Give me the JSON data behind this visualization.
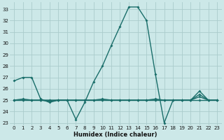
{
  "xlabel": "Humidex (Indice chaleur)",
  "bg_color": "#cce8e8",
  "grid_color": "#aacccc",
  "line_color": "#1a6e6a",
  "xlim": [
    -0.5,
    23.5
  ],
  "ylim": [
    22.8,
    33.6
  ],
  "yticks": [
    23,
    24,
    25,
    26,
    27,
    28,
    29,
    30,
    31,
    32,
    33
  ],
  "xticks": [
    0,
    1,
    2,
    3,
    4,
    5,
    6,
    7,
    8,
    9,
    10,
    11,
    12,
    13,
    14,
    15,
    16,
    17,
    18,
    19,
    20,
    21,
    22,
    23
  ],
  "series": [
    {
      "x": [
        0,
        1,
        2,
        3,
        4,
        5,
        6,
        7,
        8,
        9,
        10,
        11,
        12,
        13,
        14,
        15,
        16,
        17,
        18,
        19,
        20,
        21,
        22,
        23
      ],
      "y": [
        26.7,
        27.0,
        27.0,
        25.1,
        24.8,
        25.0,
        25.0,
        23.3,
        24.8,
        26.6,
        28.0,
        29.8,
        31.5,
        33.2,
        33.2,
        32.0,
        27.3,
        23.0,
        25.0,
        25.0,
        25.0,
        25.8,
        25.0,
        25.0
      ]
    },
    {
      "x": [
        0,
        1,
        2,
        3,
        4,
        5,
        6,
        7,
        8,
        9,
        10,
        11,
        12,
        13,
        14,
        15,
        16,
        17,
        18,
        19,
        20,
        21,
        22,
        23
      ],
      "y": [
        25.0,
        25.1,
        25.0,
        25.0,
        24.9,
        25.0,
        25.0,
        25.0,
        25.0,
        25.0,
        25.1,
        25.0,
        25.0,
        25.0,
        25.0,
        25.0,
        25.0,
        25.0,
        25.0,
        25.0,
        25.0,
        25.5,
        25.0,
        25.0
      ]
    },
    {
      "x": [
        0,
        1,
        2,
        3,
        4,
        5,
        6,
        7,
        8,
        9,
        10,
        11,
        12,
        13,
        14,
        15,
        16,
        17,
        18,
        19,
        20,
        21,
        22,
        23
      ],
      "y": [
        25.0,
        25.0,
        25.0,
        25.0,
        25.0,
        25.0,
        25.0,
        25.0,
        25.0,
        25.0,
        25.0,
        25.0,
        25.0,
        25.0,
        25.0,
        25.0,
        25.1,
        25.0,
        25.0,
        25.0,
        25.0,
        25.3,
        25.0,
        25.0
      ]
    },
    {
      "x": [
        0,
        1,
        2,
        3,
        4,
        5,
        6,
        7,
        8,
        9,
        10,
        11,
        12,
        13,
        14,
        15,
        16,
        17,
        18,
        19,
        20,
        21,
        22,
        23
      ],
      "y": [
        25.0,
        25.0,
        25.0,
        25.0,
        25.0,
        25.0,
        25.0,
        25.0,
        25.0,
        25.0,
        25.0,
        25.0,
        25.0,
        25.0,
        25.0,
        25.0,
        25.0,
        25.0,
        25.0,
        25.0,
        25.0,
        25.0,
        25.0,
        25.0
      ]
    }
  ]
}
